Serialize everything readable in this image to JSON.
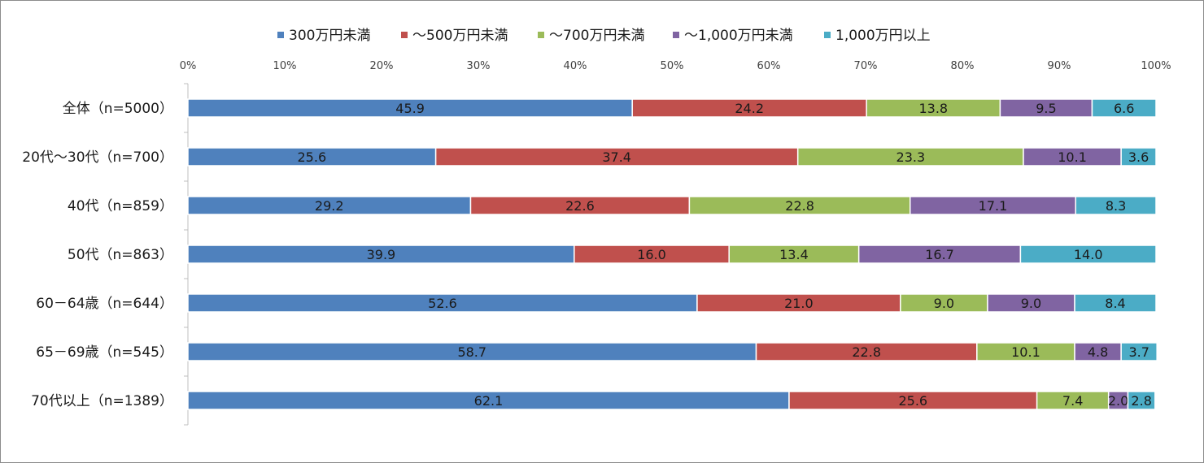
{
  "chart_data": {
    "type": "bar",
    "orientation": "horizontal",
    "stacked": "percent",
    "title": "",
    "xlabel": "",
    "ylabel": "",
    "xlim": [
      0,
      100
    ],
    "x_ticks": [
      "0%",
      "10%",
      "20%",
      "30%",
      "40%",
      "50%",
      "60%",
      "70%",
      "80%",
      "90%",
      "100%"
    ],
    "legend_position": "top",
    "categories": [
      "全体（n=5000）",
      "20代～30代（n=700）",
      "40代（n=859）",
      "50代（n=863）",
      "60－64歳（n=644）",
      "65－69歳（n=545）",
      "70代以上（n=1389）"
    ],
    "series": [
      {
        "name": "300万円未満",
        "color": "#4f81bd",
        "values": [
          45.9,
          25.6,
          29.2,
          39.9,
          52.6,
          58.7,
          62.1
        ]
      },
      {
        "name": "～500万円未満",
        "color": "#c0504d",
        "values": [
          24.2,
          37.4,
          22.6,
          16.0,
          21.0,
          22.8,
          25.6
        ]
      },
      {
        "name": "～700万円未満",
        "color": "#9bbb59",
        "values": [
          13.8,
          23.3,
          22.8,
          13.4,
          9.0,
          10.1,
          7.4
        ]
      },
      {
        "name": "～1,000万円未満",
        "color": "#8064a2",
        "values": [
          9.5,
          10.1,
          17.1,
          16.7,
          9.0,
          4.8,
          2.0
        ]
      },
      {
        "name": "1,000万円以上",
        "color": "#4bacc6",
        "values": [
          6.6,
          3.6,
          8.3,
          14.0,
          8.4,
          3.7,
          2.8
        ]
      }
    ],
    "labels": [
      [
        "45.9",
        "25.6",
        "29.2",
        "39.9",
        "52.6",
        "58.7",
        "62.1"
      ],
      [
        "24.2",
        "37.4",
        "22.6",
        "16.0",
        "21.0",
        "22.8",
        "25.6"
      ],
      [
        "13.8",
        "23.3",
        "22.8",
        "13.4",
        "9.0",
        "10.1",
        "7.4"
      ],
      [
        "9.5",
        "10.1",
        "17.1",
        "16.7",
        "9.0",
        "4.8",
        "2.0"
      ],
      [
        "6.6",
        "3.6",
        "8.3",
        "14.0",
        "8.4",
        "3.7",
        "2.8"
      ]
    ]
  }
}
